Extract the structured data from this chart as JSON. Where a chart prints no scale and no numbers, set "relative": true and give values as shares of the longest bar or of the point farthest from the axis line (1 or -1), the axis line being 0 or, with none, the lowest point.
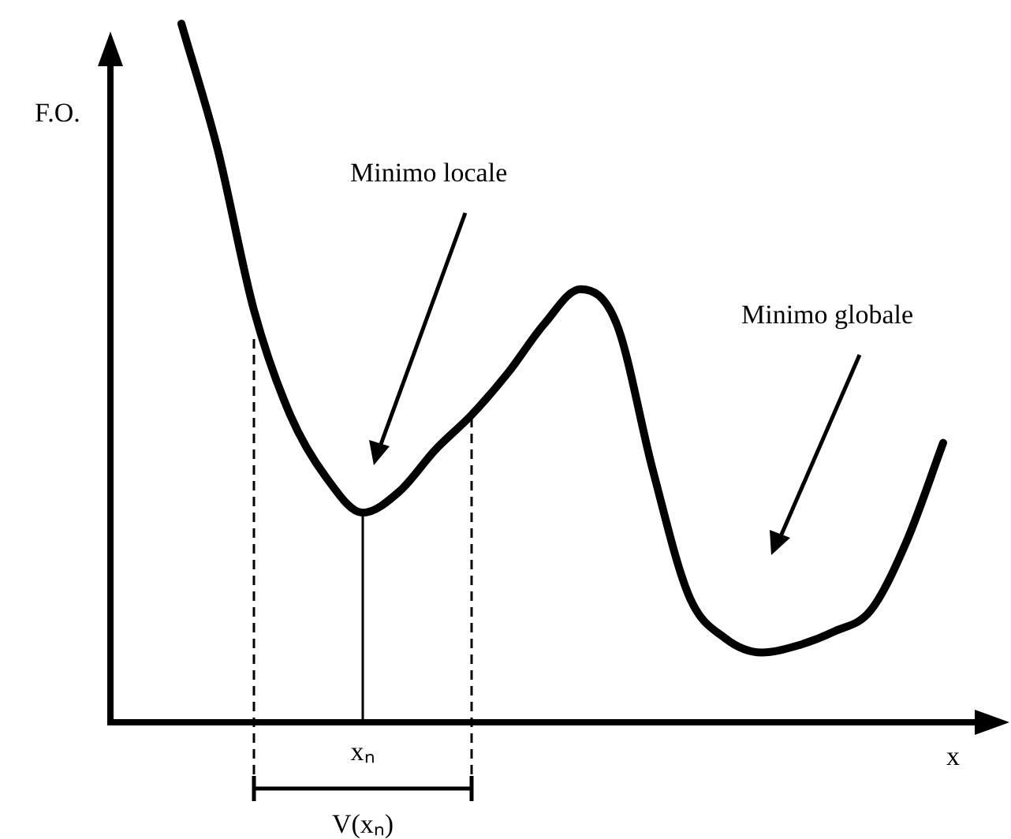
{
  "chart_data": {
    "type": "line",
    "xlabel": "x",
    "ylabel": "F.O.",
    "annotations": [
      "Minimo locale",
      "Minimo globale",
      "V(xₙ)",
      "xₙ"
    ],
    "categories": [
      null,
      null,
      null,
      null,
      null,
      null,
      null,
      null,
      null,
      null,
      null,
      null,
      null,
      null,
      null,
      null,
      null,
      null,
      null,
      null,
      null,
      null
    ],
    "values": [
      1,
      0.82,
      0.59,
      0.44,
      0.35,
      0.3,
      0.33,
      0.39,
      0.44,
      0.5,
      0.57,
      0.62,
      0.57,
      0.36,
      0.18,
      0.12,
      0.1,
      0.11,
      0.13,
      0.16,
      0.26,
      0.4
    ],
    "color": "#000000",
    "relative": true,
    "grid": false,
    "legend": false,
    "tick_labels": false,
    "marker": "none",
    "line_style": "solid"
  }
}
